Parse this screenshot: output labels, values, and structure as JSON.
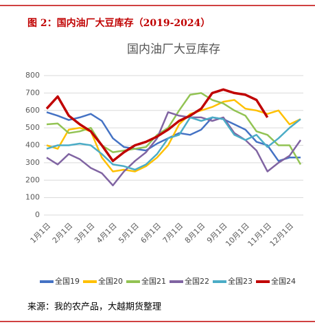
{
  "figure_title": "图 2：国内油厂大豆库存（2019-2024）",
  "source": "来源：我的农产品，大越期货整理",
  "chart_data": {
    "type": "line",
    "title": "国内油厂大豆库存",
    "categories": [
      "1月1日",
      null,
      "2月1日",
      null,
      "3月1日",
      null,
      "4月1日",
      null,
      "5月1日",
      null,
      "6月1日",
      null,
      "7月1日",
      null,
      "8月1日",
      null,
      "9月1日",
      null,
      "10月1日",
      null,
      "11月1日",
      null,
      "12月1日",
      null
    ],
    "ylim": [
      0,
      800
    ],
    "yticks": [
      0,
      100,
      200,
      300,
      400,
      500,
      600,
      700,
      800
    ],
    "grid": true,
    "series": [
      {
        "name": "全国19",
        "color": "#4472c4",
        "values": [
          590,
          570,
          545,
          560,
          580,
          540,
          440,
          390,
          380,
          370,
          410,
          440,
          470,
          460,
          490,
          560,
          550,
          520,
          490,
          420,
          400,
          310,
          330,
          330
        ]
      },
      {
        "name": "全国20",
        "color": "#ffc000",
        "values": [
          400,
          380,
          490,
          500,
          480,
          330,
          250,
          260,
          250,
          280,
          330,
          400,
          520,
          580,
          600,
          620,
          650,
          660,
          610,
          600,
          580,
          600,
          520,
          550
        ]
      },
      {
        "name": "全国21",
        "color": "#92c353",
        "values": [
          520,
          525,
          470,
          480,
          500,
          400,
          360,
          370,
          380,
          390,
          460,
          500,
          600,
          690,
          700,
          660,
          640,
          600,
          570,
          480,
          460,
          400,
          400,
          290
        ]
      },
      {
        "name": "全国22",
        "color": "#8064a2",
        "values": [
          330,
          290,
          350,
          320,
          270,
          240,
          170,
          250,
          310,
          360,
          440,
          590,
          570,
          560,
          560,
          540,
          560,
          470,
          430,
          370,
          250,
          300,
          340,
          430
        ]
      },
      {
        "name": "全国23",
        "color": "#4bacc6",
        "values": [
          380,
          400,
          400,
          410,
          400,
          350,
          290,
          280,
          260,
          290,
          350,
          440,
          460,
          560,
          540,
          560,
          550,
          460,
          430,
          460,
          390,
          440,
          500,
          550
        ]
      },
      {
        "name": "全国24",
        "color": "#c00000",
        "values": [
          610,
          680,
          570,
          520,
          480,
          400,
          310,
          360,
          400,
          420,
          450,
          490,
          540,
          570,
          610,
          700,
          720,
          700,
          690,
          660,
          560,
          null,
          null,
          null
        ]
      }
    ]
  }
}
